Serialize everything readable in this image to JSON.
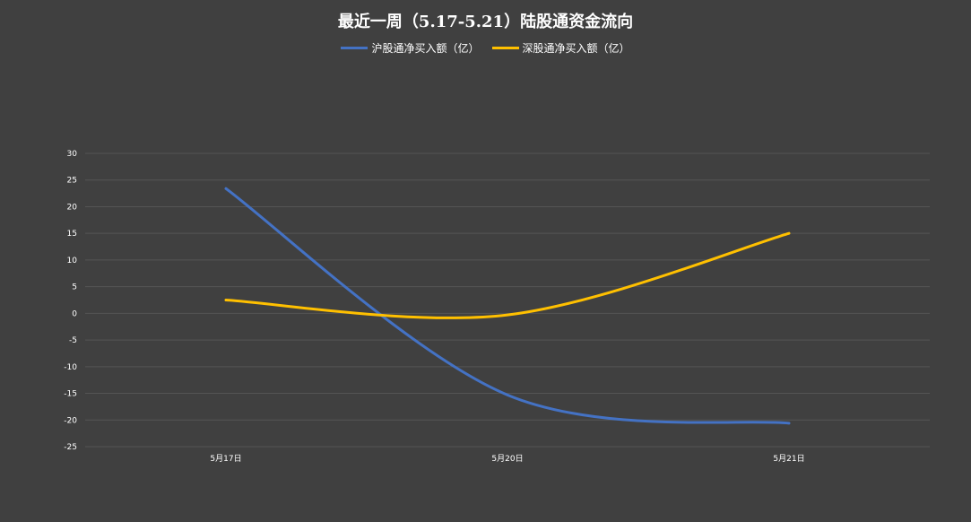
{
  "chart_data": {
    "type": "line",
    "title": "最近一周（5.17-5.21）陆股通资金流向",
    "categories": [
      "5月17日",
      "5月20日",
      "5月21日"
    ],
    "series": [
      {
        "name": "沪股通净买入额（亿）",
        "values": [
          23.4,
          -15.3,
          -20.6
        ],
        "color": "#4472C4"
      },
      {
        "name": "深股通净买入额（亿）",
        "values": [
          2.5,
          -0.3,
          15.0
        ],
        "color": "#FFC000"
      }
    ],
    "ylim": [
      -25,
      30
    ],
    "yticks": [
      30,
      25,
      20,
      15,
      10,
      5,
      0,
      -5,
      -10,
      -15,
      -20,
      -25
    ],
    "xlabel": "",
    "ylabel": "",
    "grid": true,
    "legend": "top-center",
    "smooth": true
  }
}
